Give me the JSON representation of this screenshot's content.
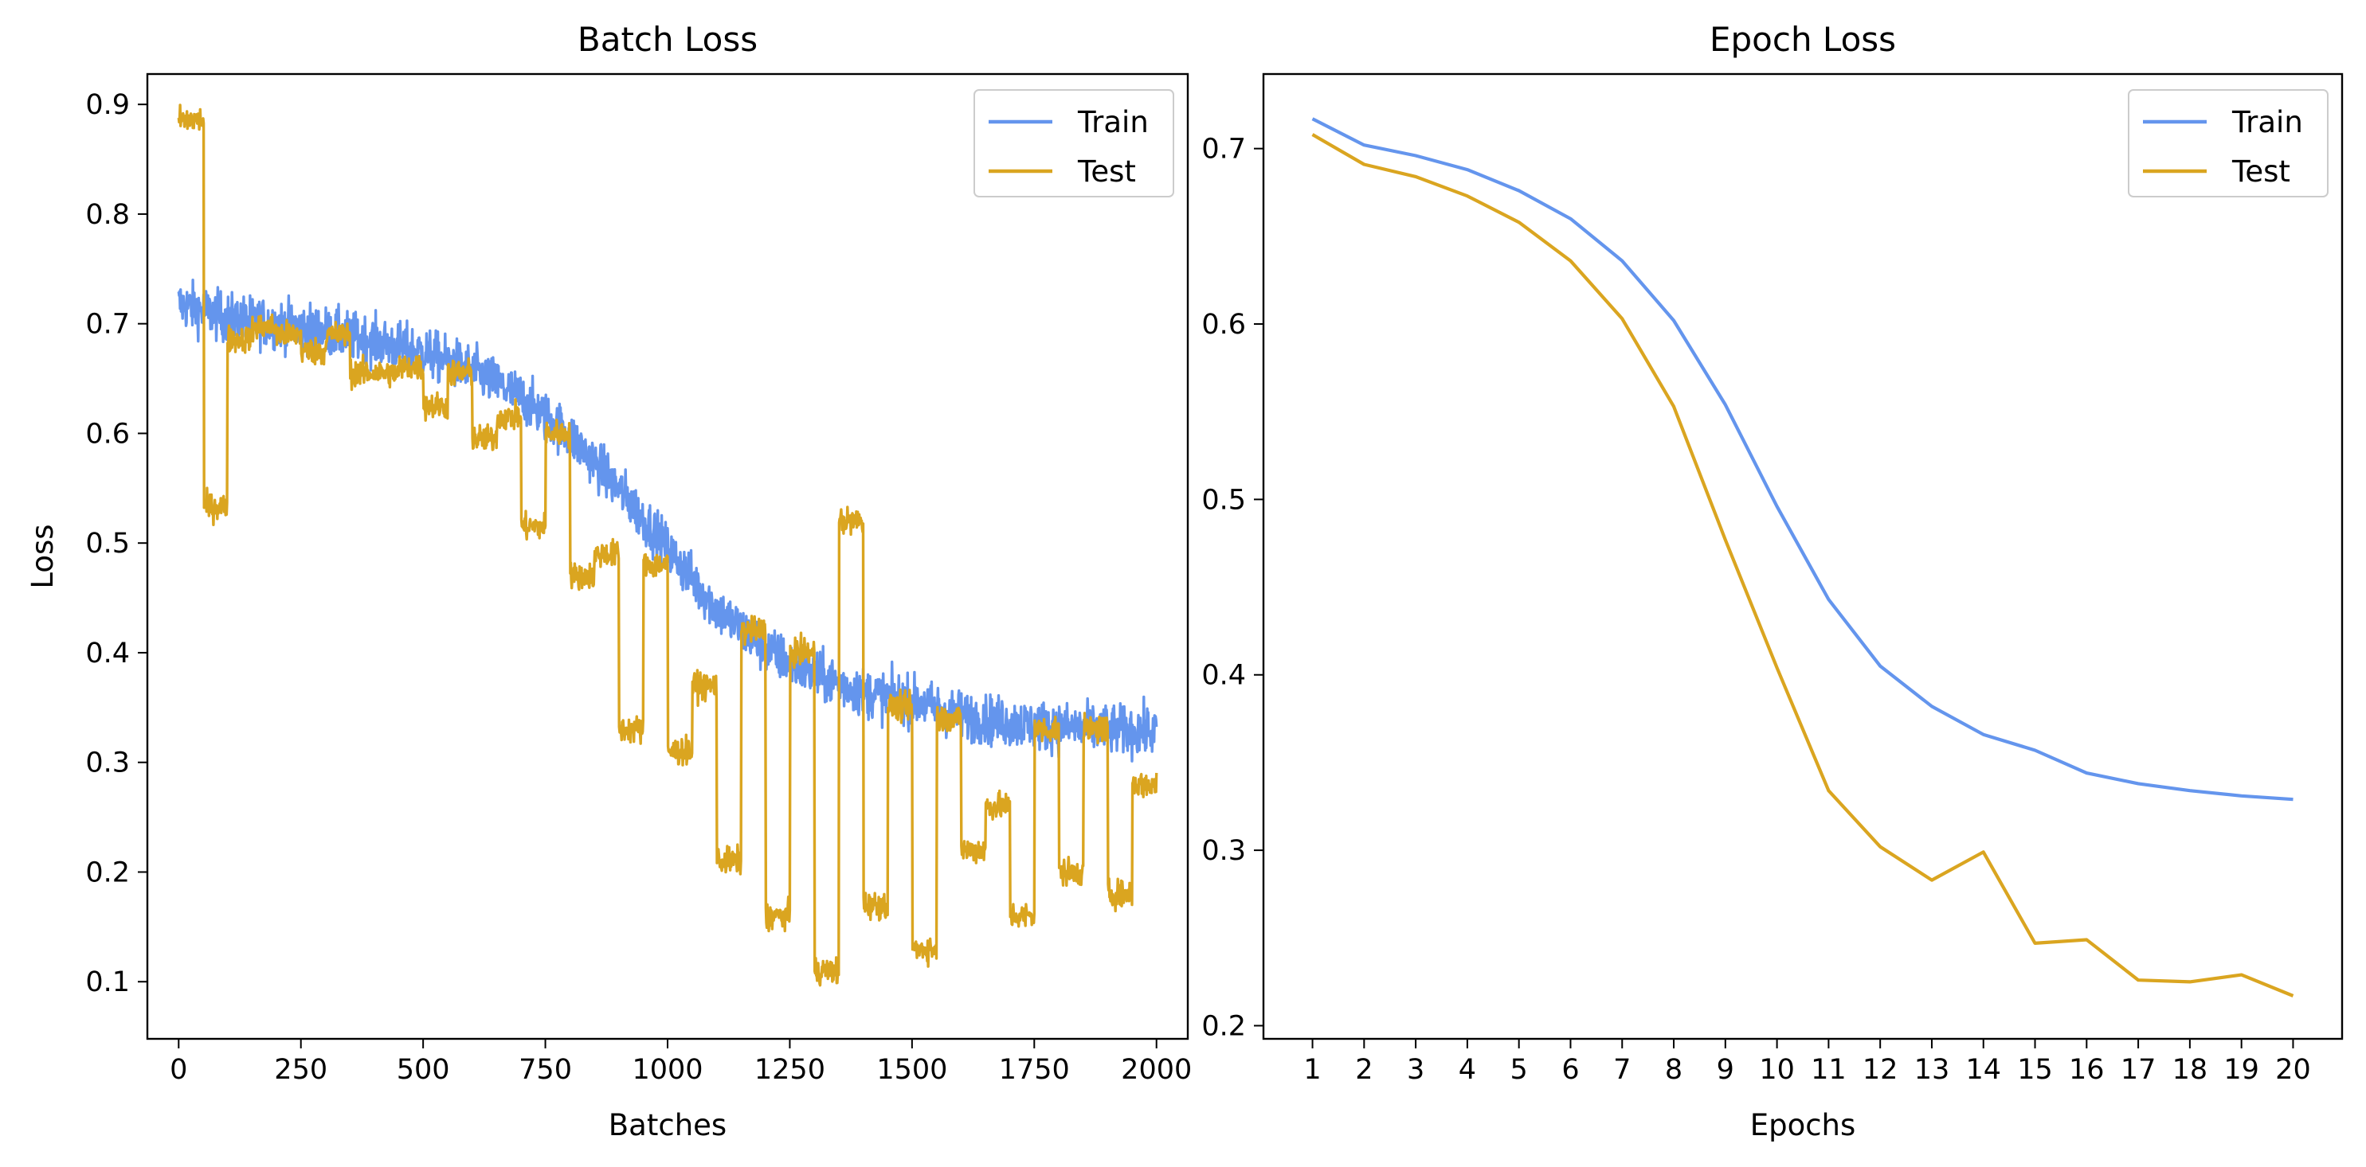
{
  "chart_data": [
    {
      "id": "batch",
      "type": "line",
      "title": "Batch Loss",
      "xlabel": "Batches",
      "ylabel": "Loss",
      "xlim": [
        -64,
        2064
      ],
      "ylim": [
        0.0479,
        0.9277
      ],
      "xticks": [
        0,
        250,
        500,
        750,
        1000,
        1250,
        1500,
        1750,
        2000
      ],
      "xtick_labels": [
        "0",
        "250",
        "500",
        "750",
        "1000",
        "1250",
        "1500",
        "1750",
        "2000"
      ],
      "yticks": [
        0.1,
        0.2,
        0.3,
        0.4,
        0.5,
        0.6,
        0.7,
        0.8,
        0.9
      ],
      "ytick_labels": [
        "0.1",
        "0.2",
        "0.3",
        "0.4",
        "0.5",
        "0.6",
        "0.7",
        "0.8",
        "0.9"
      ],
      "grid": false,
      "legend_position": "top-right",
      "series": [
        {
          "name": "Train",
          "color": "#6495ed",
          "noise": 0.022,
          "x": [
            0,
            50,
            100,
            200,
            300,
            400,
            500,
            600,
            700,
            800,
            900,
            1000,
            1100,
            1200,
            1300,
            1400,
            1500,
            1600,
            1700,
            1800,
            1900,
            2000
          ],
          "y": [
            0.718,
            0.712,
            0.705,
            0.7,
            0.693,
            0.684,
            0.674,
            0.658,
            0.633,
            0.598,
            0.55,
            0.495,
            0.44,
            0.403,
            0.38,
            0.364,
            0.356,
            0.343,
            0.336,
            0.332,
            0.33,
            0.328
          ]
        },
        {
          "name": "Test",
          "color": "#daa520",
          "noise": 0.012,
          "x": [
            0,
            51,
            52,
            99,
            100,
            150,
            151,
            200,
            201,
            250,
            251,
            300,
            301,
            350,
            351,
            400,
            401,
            450,
            451,
            500,
            501,
            550,
            551,
            600,
            601,
            650,
            651,
            700,
            701,
            750,
            751,
            800,
            801,
            850,
            851,
            900,
            901,
            950,
            951,
            1000,
            1001,
            1050,
            1051,
            1100,
            1101,
            1150,
            1151,
            1200,
            1201,
            1250,
            1251,
            1300,
            1301,
            1350,
            1351,
            1400,
            1401,
            1450,
            1451,
            1500,
            1501,
            1550,
            1551,
            1600,
            1601,
            1650,
            1651,
            1700,
            1701,
            1750,
            1751,
            1800,
            1801,
            1850,
            1851,
            1900,
            1901,
            1950,
            1951,
            2000
          ],
          "y": [
            0.886,
            0.886,
            0.533,
            0.533,
            0.686,
            0.686,
            0.697,
            0.697,
            0.69,
            0.69,
            0.675,
            0.675,
            0.69,
            0.69,
            0.655,
            0.655,
            0.655,
            0.655,
            0.66,
            0.66,
            0.625,
            0.625,
            0.655,
            0.655,
            0.595,
            0.595,
            0.615,
            0.615,
            0.515,
            0.515,
            0.6,
            0.6,
            0.47,
            0.47,
            0.49,
            0.49,
            0.33,
            0.33,
            0.48,
            0.48,
            0.31,
            0.31,
            0.37,
            0.37,
            0.21,
            0.21,
            0.42,
            0.42,
            0.16,
            0.16,
            0.4,
            0.4,
            0.11,
            0.11,
            0.52,
            0.52,
            0.17,
            0.17,
            0.35,
            0.35,
            0.13,
            0.13,
            0.34,
            0.34,
            0.22,
            0.22,
            0.26,
            0.26,
            0.16,
            0.16,
            0.33,
            0.33,
            0.2,
            0.2,
            0.33,
            0.33,
            0.18,
            0.18,
            0.28,
            0.28
          ]
        }
      ]
    },
    {
      "id": "epoch",
      "type": "line",
      "title": "Epoch Loss",
      "xlabel": "Epochs",
      "ylabel": "",
      "xlim": [
        0.05,
        20.95
      ],
      "ylim": [
        0.1925,
        0.7425
      ],
      "xticks": [
        1,
        2,
        3,
        4,
        5,
        6,
        7,
        8,
        9,
        10,
        11,
        12,
        13,
        14,
        15,
        16,
        17,
        18,
        19,
        20
      ],
      "xtick_labels": [
        "1",
        "2",
        "3",
        "4",
        "5",
        "6",
        "7",
        "8",
        "9",
        "10",
        "11",
        "12",
        "13",
        "14",
        "15",
        "16",
        "17",
        "18",
        "19",
        "20"
      ],
      "yticks": [
        0.2,
        0.3,
        0.4,
        0.5,
        0.6,
        0.7
      ],
      "ytick_labels": [
        "0.2",
        "0.3",
        "0.4",
        "0.5",
        "0.6",
        "0.7"
      ],
      "grid": false,
      "legend_position": "top-right",
      "series": [
        {
          "name": "Train",
          "color": "#6495ed",
          "x": [
            1,
            2,
            3,
            4,
            5,
            6,
            7,
            8,
            9,
            10,
            11,
            12,
            13,
            14,
            15,
            16,
            17,
            18,
            19,
            20
          ],
          "y": [
            0.717,
            0.702,
            0.696,
            0.688,
            0.676,
            0.66,
            0.636,
            0.602,
            0.554,
            0.496,
            0.443,
            0.405,
            0.382,
            0.366,
            0.357,
            0.344,
            0.338,
            0.334,
            0.331,
            0.329
          ]
        },
        {
          "name": "Test",
          "color": "#daa520",
          "x": [
            1,
            2,
            3,
            4,
            5,
            6,
            7,
            8,
            9,
            10,
            11,
            12,
            13,
            14,
            15,
            16,
            17,
            18,
            19,
            20
          ],
          "y": [
            0.708,
            0.691,
            0.684,
            0.673,
            0.658,
            0.636,
            0.603,
            0.553,
            0.477,
            0.404,
            0.334,
            0.302,
            0.283,
            0.299,
            0.247,
            0.249,
            0.226,
            0.225,
            0.229,
            0.217
          ]
        }
      ]
    }
  ]
}
